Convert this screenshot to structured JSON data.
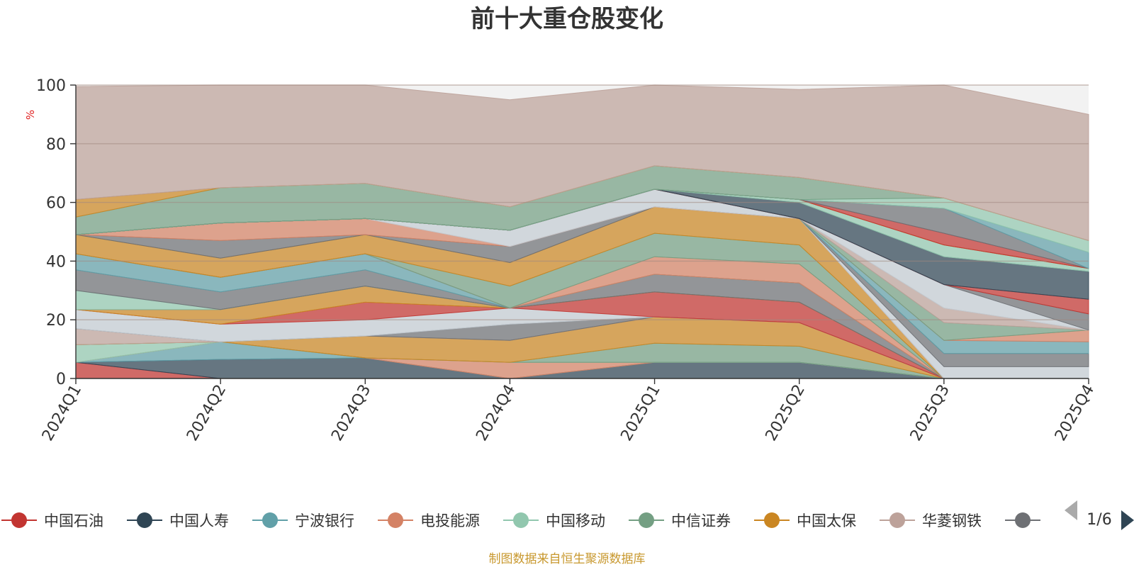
{
  "chart_data": {
    "type": "area",
    "title": "前十大重仓股变化",
    "ylabel": "%",
    "ylim": [
      0,
      100
    ],
    "yticks": [
      "0",
      "20",
      "40",
      "60",
      "80",
      "100"
    ],
    "categories": [
      "2024Q1",
      "2024Q2",
      "2024Q3",
      "2024Q4",
      "2025Q1",
      "2025Q2",
      "2025Q3",
      "2025Q4"
    ],
    "stacked": true,
    "grid": true,
    "legend_position": "bottom",
    "legend_page": "1/6",
    "source": "制图数据来自恒生聚源数据库",
    "series": [
      {
        "name": "中国石油",
        "color": "#c23531",
        "values": [
          5.5,
          0,
          0,
          0,
          0,
          0,
          0,
          0
        ]
      },
      {
        "name": "中国人寿",
        "color": "#2f4554",
        "values": [
          0,
          6.5,
          7,
          0,
          5.5,
          5.5,
          0,
          0
        ]
      },
      {
        "name": "宁波银行",
        "color": "#61a0a8",
        "values": [
          0,
          6,
          0,
          0,
          0,
          0,
          0,
          0
        ]
      },
      {
        "name": "电投能源",
        "color": "#d48265",
        "values": [
          0,
          0,
          0,
          5.5,
          0,
          0,
          0,
          0
        ]
      },
      {
        "name": "中国移动",
        "color": "#91c7ae",
        "values": [
          6,
          0,
          0,
          0,
          0,
          0,
          0,
          0
        ]
      },
      {
        "name": "中信证券",
        "color": "#749f83",
        "values": [
          0,
          0,
          0,
          0,
          6.5,
          5.5,
          0,
          0
        ]
      },
      {
        "name": "中国太保",
        "color": "#ca8622",
        "values": [
          0,
          0,
          7.5,
          7.5,
          9,
          8,
          0,
          0
        ]
      },
      {
        "name": "华菱钢铁",
        "color": "#bda29a",
        "values": [
          5.5,
          0,
          0,
          0,
          0,
          0,
          0,
          0
        ]
      },
      {
        "name": "",
        "color": "#6e7074",
        "values": [
          0,
          0,
          0,
          5.5,
          0,
          0,
          0,
          0
        ]
      },
      {
        "name": "",
        "color": "#c4ccd3",
        "values": [
          6.5,
          6,
          5.5,
          5.5,
          0,
          0,
          0,
          0
        ]
      },
      {
        "name": "",
        "color": "#c23531",
        "values": [
          0,
          0,
          6,
          0,
          8.5,
          7,
          0,
          0
        ]
      },
      {
        "name": "",
        "color": "#ca8622",
        "values": [
          0,
          5,
          5.5,
          0,
          0,
          0,
          0,
          0
        ]
      },
      {
        "name": "",
        "color": "#6e7074",
        "values": [
          0,
          0,
          0,
          0,
          6,
          6.5,
          0,
          0
        ]
      },
      {
        "name": "",
        "color": "#91c7ae",
        "values": [
          6.5,
          0,
          0,
          0,
          0,
          0,
          0,
          0
        ]
      },
      {
        "name": "",
        "color": "#6e7074",
        "values": [
          7,
          6,
          5.5,
          0,
          0,
          0,
          0,
          0
        ]
      },
      {
        "name": "",
        "color": "#61a0a8",
        "values": [
          5.5,
          5,
          5.5,
          0,
          0,
          0,
          0,
          0
        ]
      },
      {
        "name": "",
        "color": "#d48265",
        "values": [
          0,
          0,
          0,
          0,
          6,
          6.5,
          0,
          0
        ]
      },
      {
        "name": "",
        "color": "#749f83",
        "values": [
          0,
          0,
          0,
          7.5,
          8,
          6.5,
          0,
          0
        ]
      },
      {
        "name": "",
        "color": "#ca8622",
        "values": [
          6.5,
          6.5,
          6.5,
          8,
          9,
          9,
          0,
          0
        ]
      },
      {
        "name": "",
        "color": "#6e7074",
        "values": [
          0,
          6,
          0,
          5.5,
          0,
          0,
          0,
          0
        ]
      },
      {
        "name": "",
        "color": "#d48265",
        "values": [
          0,
          6,
          5.5,
          0,
          0,
          0,
          0,
          0
        ]
      },
      {
        "name": "",
        "color": "#c4ccd3",
        "values": [
          0,
          0,
          0,
          5.5,
          6,
          0,
          0,
          0
        ]
      },
      {
        "name": "",
        "color": "#bda29a",
        "values": [
          0,
          0,
          0,
          0,
          0,
          0,
          0,
          0
        ]
      },
      {
        "name": "",
        "color": "#c4ccd3",
        "values": [
          0,
          0,
          0,
          0,
          0,
          0,
          4,
          4
        ]
      },
      {
        "name": "",
        "color": "#6e7074",
        "values": [
          0,
          0,
          0,
          0,
          0,
          0,
          4.5,
          4.5
        ]
      },
      {
        "name": "",
        "color": "#61a0a8",
        "values": [
          0,
          0,
          0,
          0,
          0,
          0,
          4.5,
          4
        ]
      },
      {
        "name": "",
        "color": "#d48265",
        "values": [
          0,
          0,
          0,
          0,
          0,
          0,
          0,
          4
        ]
      },
      {
        "name": "",
        "color": "#749f83",
        "values": [
          0,
          0,
          0,
          0,
          0,
          0,
          6,
          0
        ]
      },
      {
        "name": "",
        "color": "#bda29a",
        "values": [
          0,
          0,
          0,
          0,
          0,
          0,
          5,
          0
        ]
      },
      {
        "name": "",
        "color": "#c4ccd3",
        "values": [
          0,
          0,
          0,
          0,
          0,
          0,
          8,
          0
        ]
      },
      {
        "name": "",
        "color": "#6e7074",
        "values": [
          0,
          0,
          0,
          0,
          0,
          0,
          0,
          5.5
        ]
      },
      {
        "name": "",
        "color": "#c23531",
        "values": [
          0,
          0,
          0,
          0,
          0,
          0,
          0,
          5
        ]
      },
      {
        "name": "",
        "color": "#2f4554",
        "values": [
          0,
          0,
          0,
          0,
          0,
          5.5,
          9.5,
          9.5
        ]
      },
      {
        "name": "",
        "color": "#91c7ae",
        "values": [
          0,
          0,
          0,
          0,
          0,
          1,
          4,
          1
        ]
      },
      {
        "name": "",
        "color": "#ca8622",
        "values": [
          0,
          0,
          0,
          0,
          0,
          0,
          0,
          0
        ]
      },
      {
        "name": "",
        "color": "#c23531",
        "values": [
          0,
          0,
          0,
          0,
          0,
          0,
          4,
          0
        ]
      },
      {
        "name": "",
        "color": "#6e7074",
        "values": [
          0,
          0,
          0,
          0,
          0,
          0,
          8.5,
          0
        ]
      },
      {
        "name": "",
        "color": "#61a0a8",
        "values": [
          0,
          0,
          0,
          0,
          0,
          0,
          0,
          5.5
        ]
      },
      {
        "name": "",
        "color": "#91c7ae",
        "values": [
          0,
          0,
          0,
          0,
          0,
          0,
          3.5,
          4
        ]
      },
      {
        "name": "",
        "color": "#749f83",
        "values": [
          6,
          12,
          12,
          8,
          8,
          7.5,
          0,
          0
        ]
      },
      {
        "name": "",
        "color": "#ca8622",
        "values": [
          6,
          0,
          0,
          0,
          0,
          0,
          0,
          0
        ]
      },
      {
        "name": "",
        "color": "#bda29a",
        "values": [
          38.5,
          39.5,
          38.5,
          36.5,
          28.5,
          30,
          42.5,
          43
        ]
      }
    ]
  },
  "legend_icons": {
    "prev": "triangle-left-icon",
    "next": "triangle-right-icon",
    "marker": "line-circle-icon"
  }
}
